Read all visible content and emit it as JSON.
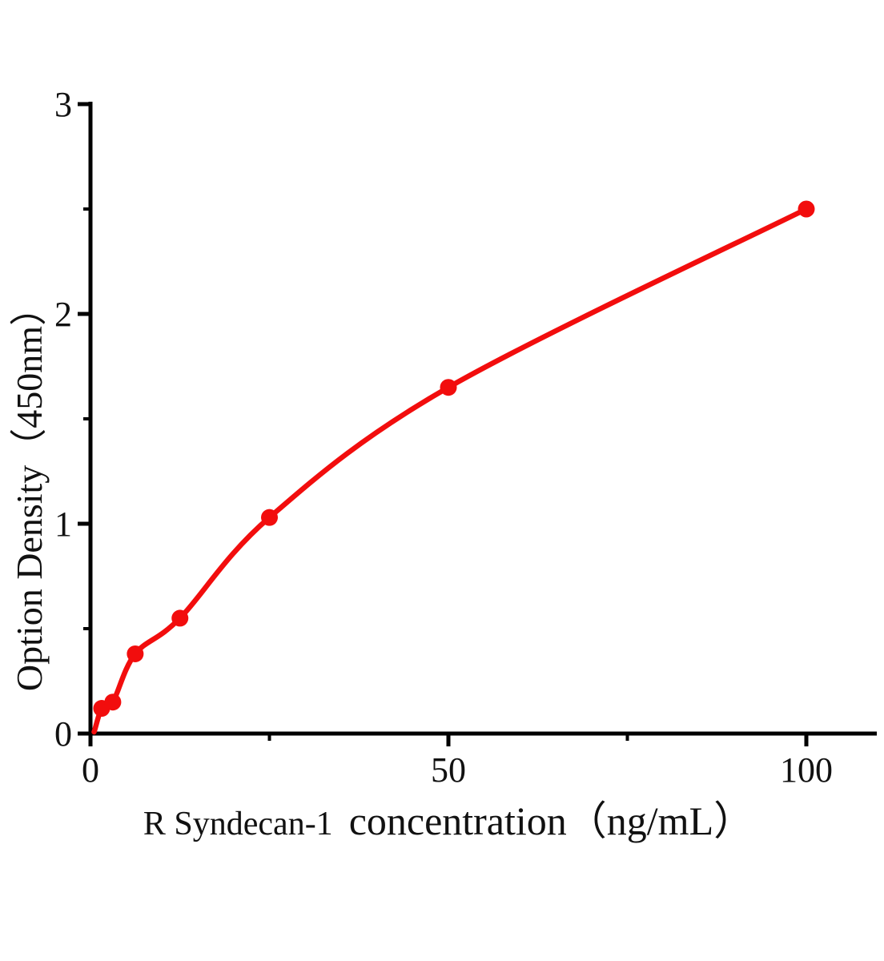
{
  "chart_data": {
    "type": "scatter",
    "title": "",
    "xlabel_prefix": "R Syndecan-1",
    "xlabel_main": "concentration（ng/mL）",
    "ylabel": "Option Density（450nm）",
    "x": [
      1.56,
      3.12,
      6.25,
      12.5,
      25,
      50,
      100
    ],
    "y": [
      0.12,
      0.15,
      0.38,
      0.55,
      1.03,
      1.65,
      2.5
    ],
    "curve_start": {
      "x": 0.5,
      "y": 0.0
    },
    "xlim": [
      0,
      100
    ],
    "ylim": [
      0,
      3
    ],
    "x_major_ticks": [
      0,
      50,
      100
    ],
    "x_minor_ticks": [
      25,
      75
    ],
    "y_major_ticks": [
      0,
      1,
      2,
      3
    ],
    "y_minor_ticks": [
      0.5,
      1.5,
      2.5
    ],
    "legend": null,
    "grid": false,
    "series_color": "#f20d0d",
    "axis_color": "#000000",
    "background_color": "#ffffff",
    "marker_radius": 10.5,
    "curve_width": 6.5
  }
}
